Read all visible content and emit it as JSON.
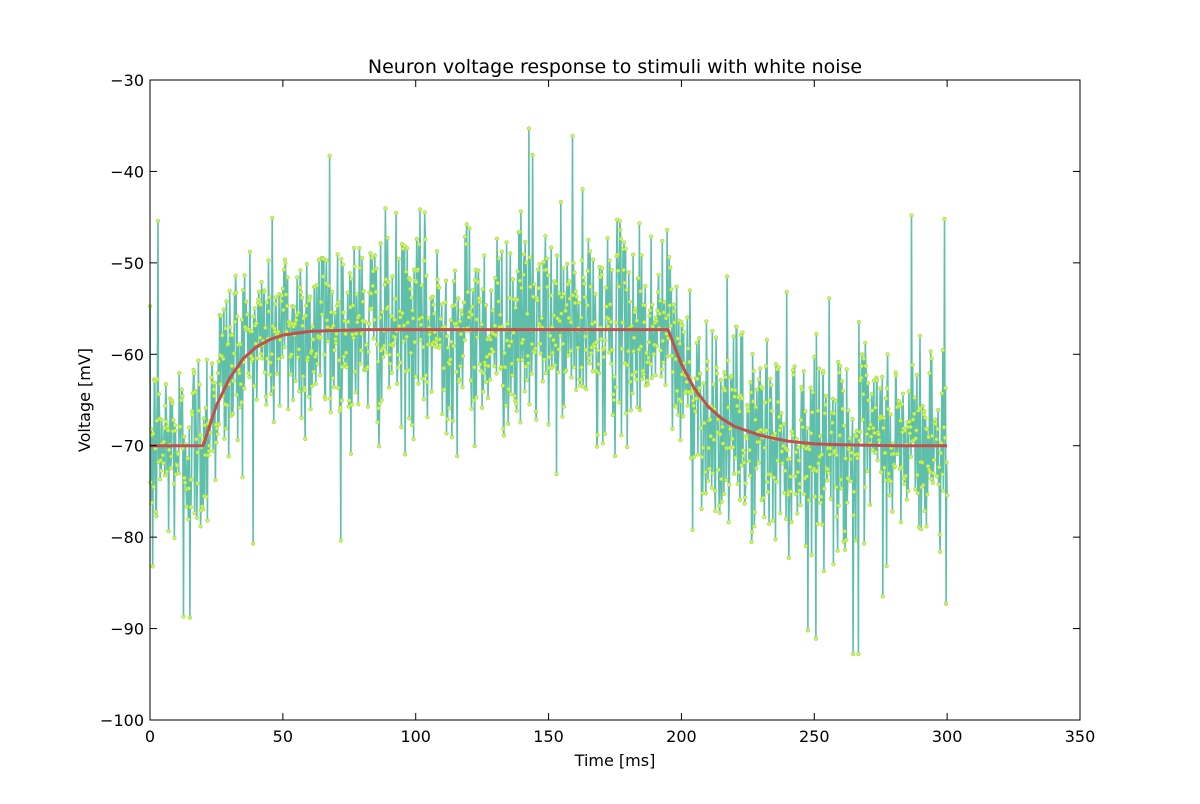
{
  "chart_data": {
    "type": "line",
    "title": "Neuron voltage response to stimuli with white noise",
    "xlabel": "Time [ms]",
    "ylabel": "Voltage [mV]",
    "xlim": [
      0,
      350
    ],
    "ylim": [
      -100,
      -30
    ],
    "xticks": [
      0,
      50,
      100,
      150,
      200,
      250,
      300,
      350
    ],
    "yticks": [
      -30,
      -40,
      -50,
      -60,
      -70,
      -80,
      -90,
      -100
    ],
    "grid": false,
    "legend": "none",
    "colors": {
      "noisy_line": "#5fbfab",
      "noisy_marker_fill": "#d7f542",
      "noisy_marker_edge": "#8ed66a",
      "fit_line": "#c0504d"
    },
    "series": [
      {
        "kind": "noisy",
        "sampling_step_ms": 0.2,
        "x_range": [
          0,
          300
        ],
        "underlying_response_segments": [
          {
            "x_from": 0,
            "x_to": 20,
            "value": -70
          },
          {
            "x_from": 20,
            "x_to": 195,
            "from": -70,
            "to": -57.3,
            "tau_ms": 8
          },
          {
            "x_from": 195,
            "x_to": 300,
            "from": -57.3,
            "to": -70,
            "tau_ms": 12
          }
        ],
        "noise_sd_mV": 5.5,
        "notable_points": [
          [
            142.5,
            -35.3
          ],
          [
            159,
            -36.1
          ],
          [
            67.5,
            -38.3
          ],
          [
            144,
            -38.2
          ],
          [
            286.5,
            -44.8
          ],
          [
            299,
            -45.2
          ],
          [
            3,
            -45.4
          ],
          [
            247.5,
            -90.2
          ],
          [
            264.5,
            -92.8
          ],
          [
            266.5,
            -92.8
          ],
          [
            12.5,
            -88.7
          ],
          [
            15,
            -88.8
          ],
          [
            299.5,
            -87.3
          ],
          [
            1,
            -83.2
          ]
        ]
      },
      {
        "kind": "smooth",
        "x": [
          0,
          20,
          25,
          30,
          35,
          40,
          45,
          50,
          60,
          70,
          80,
          100,
          150,
          195,
          200,
          205,
          210,
          215,
          220,
          230,
          240,
          250,
          260,
          280,
          300
        ],
        "values": [
          -70,
          -70,
          -65.6,
          -62.6,
          -60.5,
          -59.2,
          -58.4,
          -57.9,
          -57.5,
          -57.4,
          -57.3,
          -57.3,
          -57.3,
          -57.3,
          -61.1,
          -63.8,
          -65.7,
          -67.0,
          -67.9,
          -68.9,
          -69.5,
          -69.8,
          -69.9,
          -70,
          -70
        ]
      }
    ]
  }
}
